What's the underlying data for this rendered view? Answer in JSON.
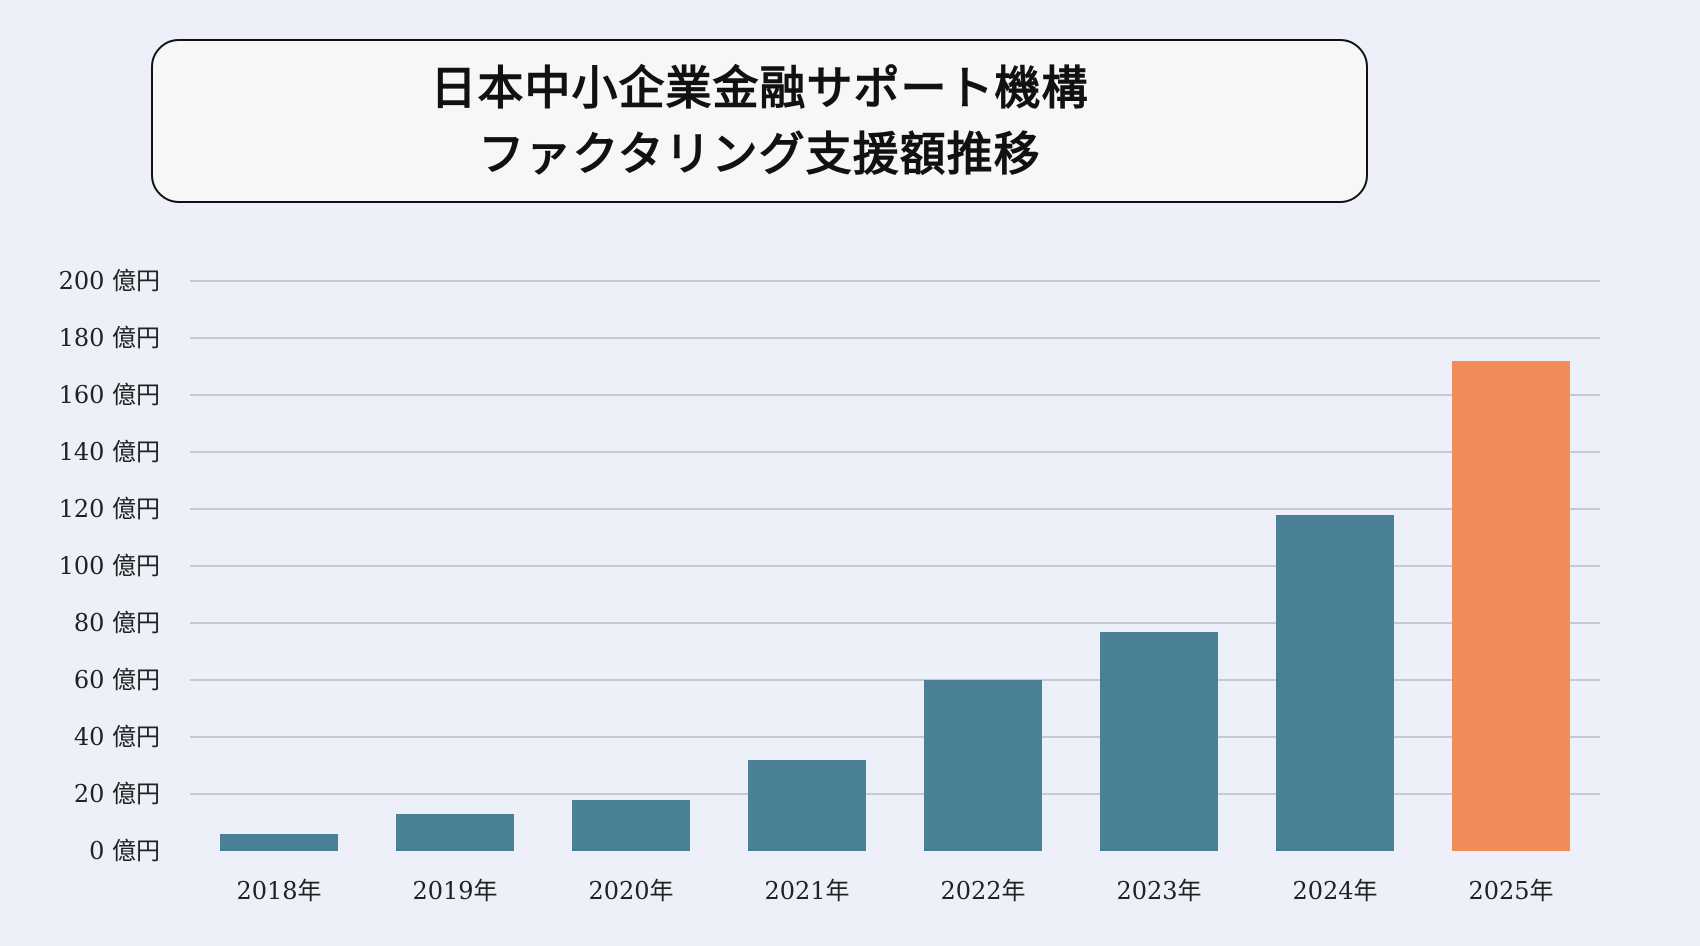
{
  "title": {
    "line1": "日本中小企業金融サポート機構",
    "line2": "ファクタリング支援額推移"
  },
  "colors": {
    "background": "#edf0f8",
    "bar_default": "#4a8095",
    "bar_highlight": "#f28b58",
    "grid": "#c5c9d6"
  },
  "chart_data": {
    "type": "bar",
    "title": "日本中小企業金融サポート機構 ファクタリング支援額推移",
    "xlabel": "",
    "ylabel": "",
    "unit": "億円",
    "categories": [
      "2018年",
      "2019年",
      "2020年",
      "2021年",
      "2022年",
      "2023年",
      "2024年",
      "2025年"
    ],
    "values": [
      6,
      13,
      18,
      32,
      60,
      77,
      118,
      172
    ],
    "highlight_index": 7,
    "ylim": [
      0,
      200
    ],
    "yticks": [
      0,
      20,
      40,
      60,
      80,
      100,
      120,
      140,
      160,
      180,
      200
    ],
    "ytick_labels": [
      "0 億円",
      "20 億円",
      "40 億円",
      "60 億円",
      "80 億円",
      "100 億円",
      "120 億円",
      "140 億円",
      "160 億円",
      "180 億円",
      "200 億円"
    ],
    "grid": true,
    "legend": null
  }
}
